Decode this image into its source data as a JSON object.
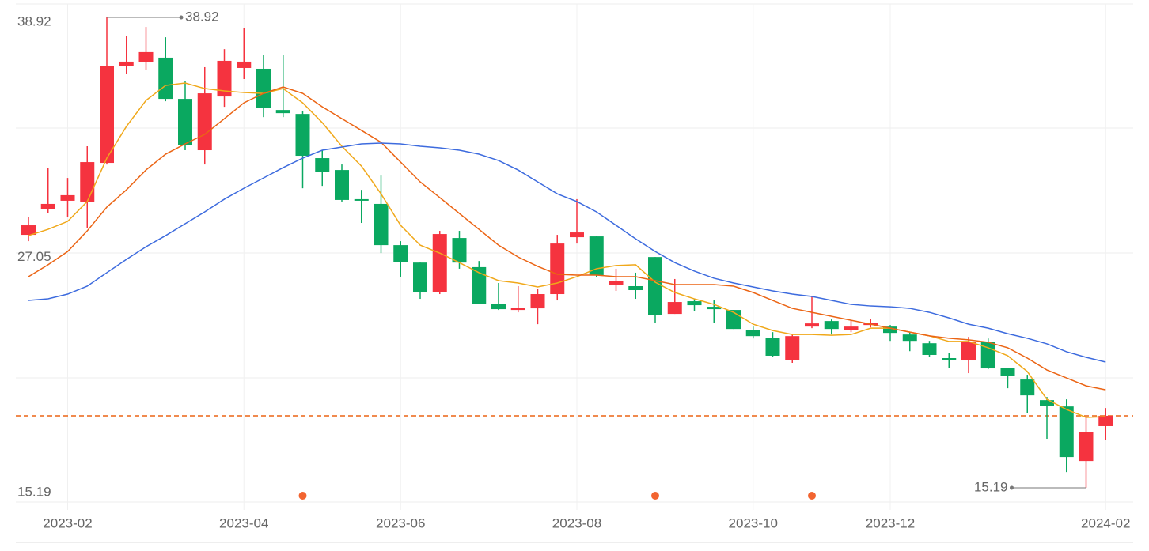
{
  "chart_data": {
    "type": "candlestick",
    "categories": [
      null,
      null,
      "2023-02",
      null,
      null,
      null,
      null,
      null,
      null,
      null,
      null,
      "2023-04",
      null,
      null,
      null,
      null,
      null,
      null,
      null,
      "2023-06",
      null,
      null,
      null,
      null,
      null,
      null,
      null,
      null,
      "2023-08",
      null,
      null,
      null,
      null,
      null,
      null,
      null,
      null,
      "2023-10",
      null,
      null,
      null,
      null,
      null,
      null,
      "2023-12",
      null,
      null,
      null,
      null,
      null,
      null,
      null,
      null,
      null,
      null,
      "2024-02"
    ],
    "open": [
      27.95,
      29.23,
      29.67,
      29.59,
      31.58,
      36.45,
      36.65,
      36.89,
      34.81,
      32.22,
      34.93,
      36.37,
      36.33,
      34.25,
      34.05,
      31.82,
      31.22,
      29.75,
      29.51,
      27.43,
      26.55,
      25.08,
      27.79,
      26.32,
      24.48,
      24.16,
      24.24,
      24.96,
      27.83,
      27.87,
      25.44,
      25.36,
      26.83,
      23.96,
      24.6,
      24.32,
      24.16,
      23.16,
      22.76,
      21.65,
      23.32,
      23.6,
      23.16,
      23.4,
      23.32,
      22.92,
      22.48,
      21.73,
      21.61,
      22.56,
      21.25,
      20.65,
      19.61,
      19.29,
      16.54,
      18.3
    ],
    "high": [
      28.83,
      31.34,
      30.82,
      32.42,
      38.92,
      38.0,
      38.44,
      37.92,
      35.69,
      36.41,
      37.32,
      38.4,
      37.01,
      37.01,
      34.21,
      32.22,
      31.5,
      30.22,
      30.94,
      27.63,
      26.55,
      28.15,
      28.15,
      26.63,
      25.52,
      25.36,
      25.24,
      27.95,
      29.75,
      27.87,
      26.24,
      26.04,
      26.83,
      25.72,
      24.72,
      24.64,
      24.16,
      23.32,
      23.04,
      22.96,
      24.88,
      23.68,
      23.64,
      23.72,
      23.4,
      23.04,
      22.6,
      21.97,
      22.8,
      22.72,
      21.25,
      20.89,
      19.77,
      19.65,
      18.74,
      19.21
    ],
    "low": [
      27.63,
      29.03,
      28.83,
      28.31,
      31.5,
      36.09,
      36.29,
      34.69,
      32.22,
      31.5,
      34.41,
      35.81,
      33.89,
      33.89,
      30.3,
      30.42,
      29.63,
      28.55,
      27.03,
      25.84,
      24.72,
      24.96,
      26.24,
      24.48,
      24.16,
      24.04,
      23.44,
      24.64,
      27.51,
      25.84,
      25.12,
      24.72,
      23.52,
      23.96,
      24.12,
      23.52,
      23.2,
      22.72,
      21.77,
      21.49,
      23.24,
      22.92,
      23.04,
      23.28,
      22.6,
      22.08,
      21.77,
      21.25,
      20.97,
      21.17,
      20.21,
      18.97,
      17.66,
      15.98,
      15.19,
      17.62
    ],
    "close": [
      28.43,
      29.51,
      29.95,
      31.62,
      36.45,
      36.69,
      37.17,
      34.81,
      32.46,
      35.09,
      36.73,
      36.69,
      34.37,
      34.09,
      31.94,
      31.14,
      29.71,
      29.67,
      27.43,
      26.59,
      25.04,
      27.99,
      26.55,
      24.48,
      24.2,
      24.28,
      24.96,
      27.51,
      28.07,
      25.92,
      25.6,
      25.16,
      23.92,
      24.56,
      24.4,
      24.2,
      23.2,
      22.84,
      21.85,
      22.84,
      23.48,
      23.2,
      23.32,
      23.52,
      23.0,
      22.6,
      21.89,
      21.65,
      22.56,
      21.21,
      20.85,
      19.85,
      19.33,
      16.74,
      18.02,
      18.82
    ],
    "up_color": "#f5333f",
    "down_color": "#0aa860",
    "moving_averages": [
      {
        "color": "#f0a81a",
        "values": [
          27.91,
          28.23,
          28.63,
          29.63,
          31.82,
          33.42,
          34.73,
          35.49,
          35.61,
          35.33,
          35.21,
          35.13,
          35.09,
          35.33,
          34.61,
          33.61,
          32.42,
          31.42,
          30.02,
          28.43,
          27.43,
          27.03,
          26.55,
          26.04,
          25.64,
          25.52,
          25.32,
          25.52,
          25.84,
          26.24,
          26.4,
          26.44,
          25.56,
          25.04,
          24.72,
          24.44,
          24.04,
          23.44,
          23.12,
          22.92,
          22.92,
          22.88,
          22.92,
          23.24,
          23.24,
          23.04,
          22.85,
          22.57,
          22.57,
          22.25,
          21.85,
          21.05,
          19.65,
          19.14,
          18.74,
          18.78
        ]
      },
      {
        "color": "#eb6414",
        "values": [
          25.84,
          26.44,
          27.11,
          28.15,
          29.35,
          30.22,
          31.22,
          32.02,
          32.54,
          33.02,
          33.81,
          34.61,
          35.09,
          35.41,
          35.09,
          34.41,
          33.81,
          33.22,
          32.62,
          31.62,
          30.62,
          29.83,
          29.03,
          28.23,
          27.43,
          26.83,
          26.36,
          25.96,
          25.92,
          25.92,
          25.84,
          25.84,
          25.64,
          25.44,
          25.44,
          25.44,
          25.36,
          25.04,
          24.64,
          24.24,
          24.04,
          23.84,
          23.64,
          23.44,
          23.24,
          23.04,
          22.85,
          22.73,
          22.65,
          22.53,
          22.25,
          21.73,
          21.13,
          20.73,
          20.33,
          20.13
        ]
      },
      {
        "color": "#3d6bde",
        "values": [
          24.64,
          24.72,
          24.96,
          25.36,
          26.04,
          26.71,
          27.35,
          27.91,
          28.51,
          29.11,
          29.75,
          30.3,
          30.82,
          31.34,
          31.82,
          32.22,
          32.38,
          32.54,
          32.58,
          32.54,
          32.42,
          32.34,
          32.22,
          32.02,
          31.7,
          31.22,
          30.62,
          30.02,
          29.63,
          29.11,
          28.43,
          27.75,
          27.11,
          26.55,
          26.12,
          25.76,
          25.52,
          25.32,
          25.12,
          24.96,
          24.84,
          24.64,
          24.44,
          24.36,
          24.32,
          24.24,
          24.04,
          23.76,
          23.44,
          23.24,
          22.96,
          22.73,
          22.45,
          22.05,
          21.77,
          21.53
        ]
      }
    ],
    "price_line": 18.82,
    "price_line_color": "#eb6414",
    "events": [
      14,
      32,
      40
    ],
    "event_color": "#f26430",
    "high_annotation": 38.92,
    "low_annotation": 15.19,
    "ylim": [
      14.47,
      39.6
    ],
    "yticks": [
      38.92,
      27.05,
      15.19
    ]
  }
}
